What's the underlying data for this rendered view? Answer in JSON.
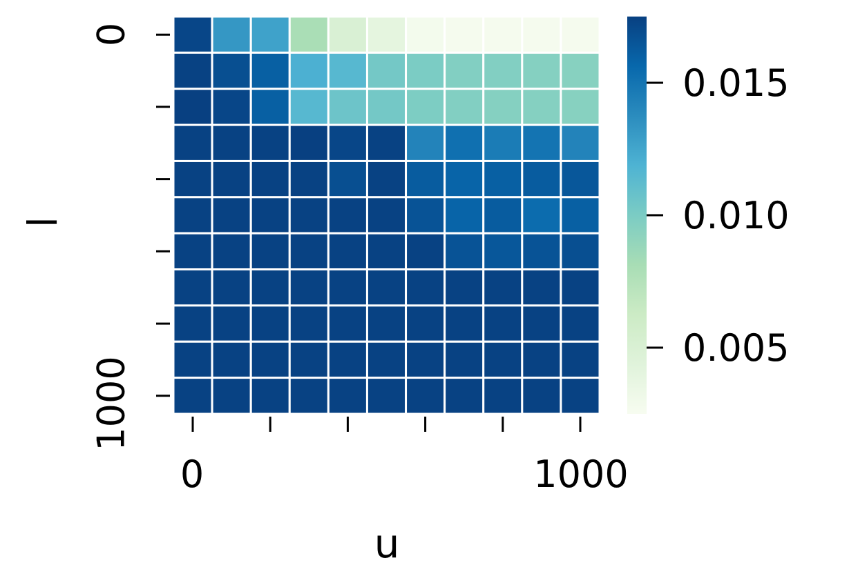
{
  "chart_data": {
    "type": "heatmap",
    "xlabel": "u",
    "ylabel": "l",
    "x_tick_labels": [
      "0",
      "",
      "",
      "",
      "",
      "1000"
    ],
    "y_tick_labels": [
      "0",
      "",
      "",
      "",
      "",
      "1000"
    ],
    "colorbar": {
      "colormap": "GnBu",
      "vmin": 0.0025,
      "vmax": 0.0175,
      "ticks": [
        0.005,
        0.01,
        0.015
      ],
      "tick_labels": [
        "0.005",
        "0.010",
        "0.015"
      ]
    },
    "values": [
      [
        0.0172,
        0.0132,
        0.0127,
        0.008,
        0.005,
        0.004,
        0.0028,
        0.0027,
        0.0027,
        0.0027,
        0.0027
      ],
      [
        0.0174,
        0.0168,
        0.016,
        0.012,
        0.0115,
        0.0103,
        0.01,
        0.0097,
        0.0097,
        0.0096,
        0.0095
      ],
      [
        0.0175,
        0.0172,
        0.016,
        0.0115,
        0.0106,
        0.0103,
        0.0099,
        0.0097,
        0.0096,
        0.0096,
        0.0095
      ],
      [
        0.0174,
        0.0174,
        0.0174,
        0.0176,
        0.0172,
        0.0174,
        0.0142,
        0.0152,
        0.0146,
        0.015,
        0.0142
      ],
      [
        0.0174,
        0.0174,
        0.0174,
        0.0174,
        0.0168,
        0.0174,
        0.0162,
        0.0158,
        0.016,
        0.0162,
        0.0164
      ],
      [
        0.0174,
        0.0174,
        0.0174,
        0.0174,
        0.0174,
        0.0174,
        0.0166,
        0.0158,
        0.0162,
        0.0154,
        0.016
      ],
      [
        0.0174,
        0.0174,
        0.0174,
        0.0174,
        0.0174,
        0.0174,
        0.0174,
        0.0166,
        0.0164,
        0.0166,
        0.0168
      ],
      [
        0.0174,
        0.0174,
        0.0174,
        0.0174,
        0.0174,
        0.0174,
        0.0174,
        0.0174,
        0.0174,
        0.0174,
        0.0174
      ],
      [
        0.0174,
        0.0174,
        0.0174,
        0.0174,
        0.0174,
        0.0174,
        0.0174,
        0.0174,
        0.0174,
        0.0174,
        0.0174
      ],
      [
        0.0174,
        0.0174,
        0.0174,
        0.0174,
        0.0174,
        0.0174,
        0.0174,
        0.0174,
        0.0174,
        0.0174,
        0.0174
      ],
      [
        0.0174,
        0.0174,
        0.0174,
        0.0174,
        0.0174,
        0.0174,
        0.0174,
        0.0174,
        0.0174,
        0.0174,
        0.0174
      ]
    ]
  }
}
